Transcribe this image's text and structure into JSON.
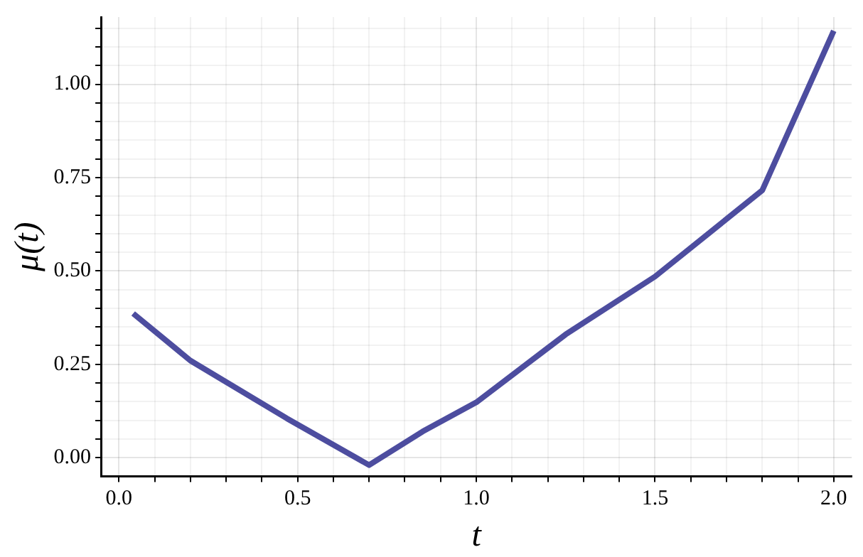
{
  "chart_data": {
    "type": "line",
    "xlabel": "t",
    "ylabel": "μ(t)",
    "x": [
      0.04,
      0.2,
      0.47,
      0.7,
      0.85,
      1.0,
      1.25,
      1.5,
      1.8,
      2.0
    ],
    "series": [
      {
        "color": "#4d4d9f",
        "values": [
          0.386,
          0.26,
          0.105,
          -0.02,
          0.07,
          0.148,
          0.33,
          0.485,
          0.716,
          1.143
        ]
      }
    ],
    "xlim": [
      -0.05,
      2.05
    ],
    "xticks": [
      {
        "value": 0,
        "label": "0.0"
      },
      {
        "value": 0.1,
        "label": null
      },
      {
        "value": 0.2,
        "label": null
      },
      {
        "value": 0.3,
        "label": null
      },
      {
        "value": 0.4,
        "label": null
      },
      {
        "value": 0.5,
        "label": "0.5"
      },
      {
        "value": 0.6,
        "label": null
      },
      {
        "value": 0.7,
        "label": null
      },
      {
        "value": 0.8,
        "label": null
      },
      {
        "value": 0.9,
        "label": null
      },
      {
        "value": 1,
        "label": "1.0"
      },
      {
        "value": 1.1,
        "label": null
      },
      {
        "value": 1.2,
        "label": null
      },
      {
        "value": 1.3,
        "label": null
      },
      {
        "value": 1.4,
        "label": null
      },
      {
        "value": 1.5,
        "label": "1.5"
      },
      {
        "value": 1.6,
        "label": null
      },
      {
        "value": 1.7,
        "label": null
      },
      {
        "value": 1.8,
        "label": null
      },
      {
        "value": 1.9,
        "label": null
      },
      {
        "value": 2,
        "label": "2.0"
      }
    ],
    "ylim": [
      -0.05,
      1.18
    ],
    "yticks": [
      {
        "value": 0,
        "label": "0.00"
      },
      {
        "value": 0.05,
        "label": null
      },
      {
        "value": 0.1,
        "label": null
      },
      {
        "value": 0.15,
        "label": null
      },
      {
        "value": 0.2,
        "label": null
      },
      {
        "value": 0.25,
        "label": "0.25"
      },
      {
        "value": 0.3,
        "label": null
      },
      {
        "value": 0.35,
        "label": null
      },
      {
        "value": 0.4,
        "label": null
      },
      {
        "value": 0.45,
        "label": null
      },
      {
        "value": 0.5,
        "label": "0.50"
      },
      {
        "value": 0.55,
        "label": null
      },
      {
        "value": 0.6,
        "label": null
      },
      {
        "value": 0.65,
        "label": null
      },
      {
        "value": 0.7,
        "label": null
      },
      {
        "value": 0.75,
        "label": "0.75"
      },
      {
        "value": 0.8,
        "label": null
      },
      {
        "value": 0.85,
        "label": null
      },
      {
        "value": 0.9,
        "label": null
      },
      {
        "value": 0.95,
        "label": null
      },
      {
        "value": 1,
        "label": "1.00"
      },
      {
        "value": 1.05,
        "label": null
      },
      {
        "value": 1.1,
        "label": null
      },
      {
        "value": 1.15,
        "label": null
      }
    ],
    "grid": true,
    "legend": false,
    "marker": "none",
    "line_style": "solid"
  }
}
